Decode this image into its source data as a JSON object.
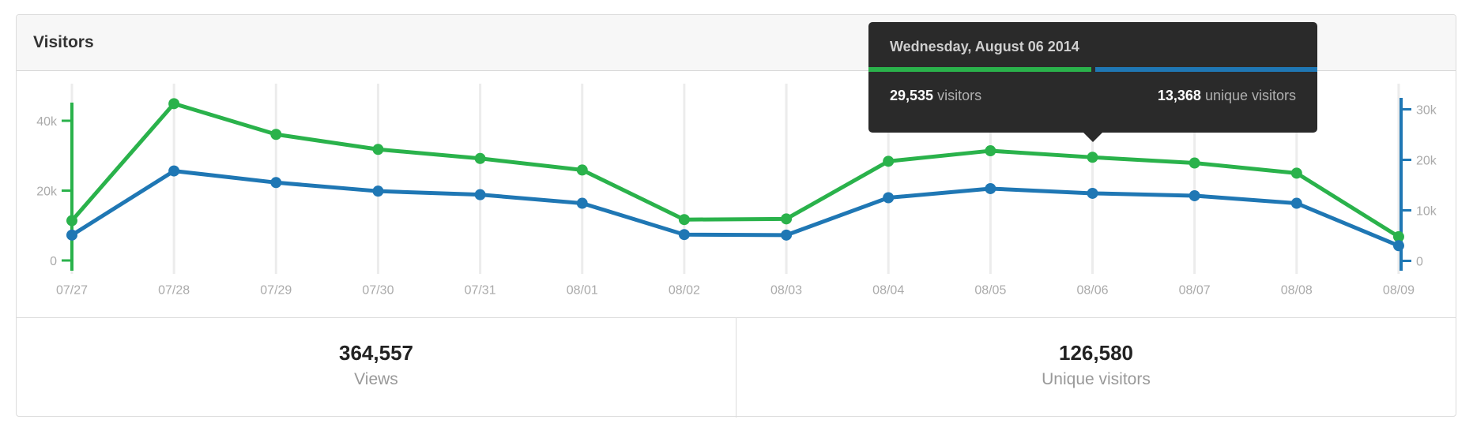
{
  "panel": {
    "title": "Visitors"
  },
  "tooltip": {
    "date": "Wednesday, August 06 2014",
    "visitors_value": "29,535",
    "visitors_label": "visitors",
    "unique_value": "13,368",
    "unique_label": "unique visitors"
  },
  "stats": {
    "views": {
      "value": "364,557",
      "label": "Views"
    },
    "unique": {
      "value": "126,580",
      "label": "Unique visitors"
    }
  },
  "colors": {
    "green": "#2ab24b",
    "blue": "#1f77b4",
    "grid": "#ececec",
    "axis_label": "#aaaaaa",
    "tooltip_bg": "#2a2a2a"
  },
  "chart_data": {
    "type": "line",
    "x": [
      "07/27",
      "07/28",
      "07/29",
      "07/30",
      "07/31",
      "08/01",
      "08/02",
      "08/03",
      "08/04",
      "08/05",
      "08/06",
      "08/07",
      "08/08",
      "08/09"
    ],
    "series": [
      {
        "name": "visitors",
        "axis": "left",
        "color": "#2ab24b",
        "values": [
          11400,
          44900,
          36100,
          31800,
          29200,
          25900,
          11700,
          11900,
          28400,
          31400,
          29535,
          27900,
          25000,
          6800
        ]
      },
      {
        "name": "unique visitors",
        "axis": "right",
        "color": "#1f77b4",
        "values": [
          5100,
          17800,
          15500,
          13800,
          13100,
          11400,
          5200,
          5100,
          12500,
          14300,
          13368,
          12900,
          11400,
          3000
        ]
      }
    ],
    "left_axis": {
      "ticks": [
        {
          "label": "0",
          "value": 0
        },
        {
          "label": "20k",
          "value": 20000
        },
        {
          "label": "40k",
          "value": 40000
        }
      ]
    },
    "right_axis": {
      "ticks": [
        {
          "label": "0",
          "value": 0
        },
        {
          "label": "10k",
          "value": 10000
        },
        {
          "label": "20k",
          "value": 20000
        },
        {
          "label": "30k",
          "value": 30000
        }
      ]
    },
    "grid": true,
    "legend_position": "none",
    "highlighted_x": "08/06"
  }
}
